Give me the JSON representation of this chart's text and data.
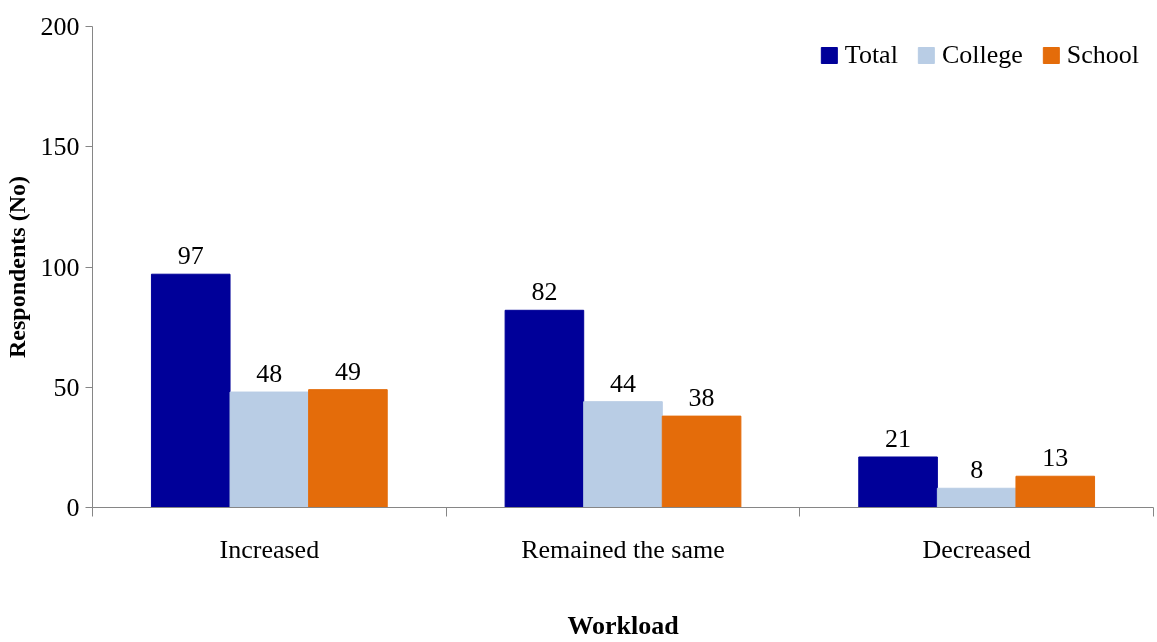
{
  "chart_data": {
    "type": "bar",
    "xlabel": "Workload",
    "ylabel": "Respondents (No)",
    "categories": [
      "Increased",
      "Remained the same",
      "Decreased"
    ],
    "series": [
      {
        "name": "Total",
        "color": "#000099",
        "values": [
          97,
          82,
          21
        ]
      },
      {
        "name": "College",
        "color": "#b9cde5",
        "values": [
          48,
          44,
          8
        ]
      },
      {
        "name": "School",
        "color": "#e46c0a",
        "values": [
          49,
          38,
          13
        ]
      }
    ],
    "ylim": [
      0,
      200
    ],
    "yticks": [
      0,
      50,
      100,
      150,
      200
    ],
    "data_labels": true,
    "legend": "top right"
  }
}
